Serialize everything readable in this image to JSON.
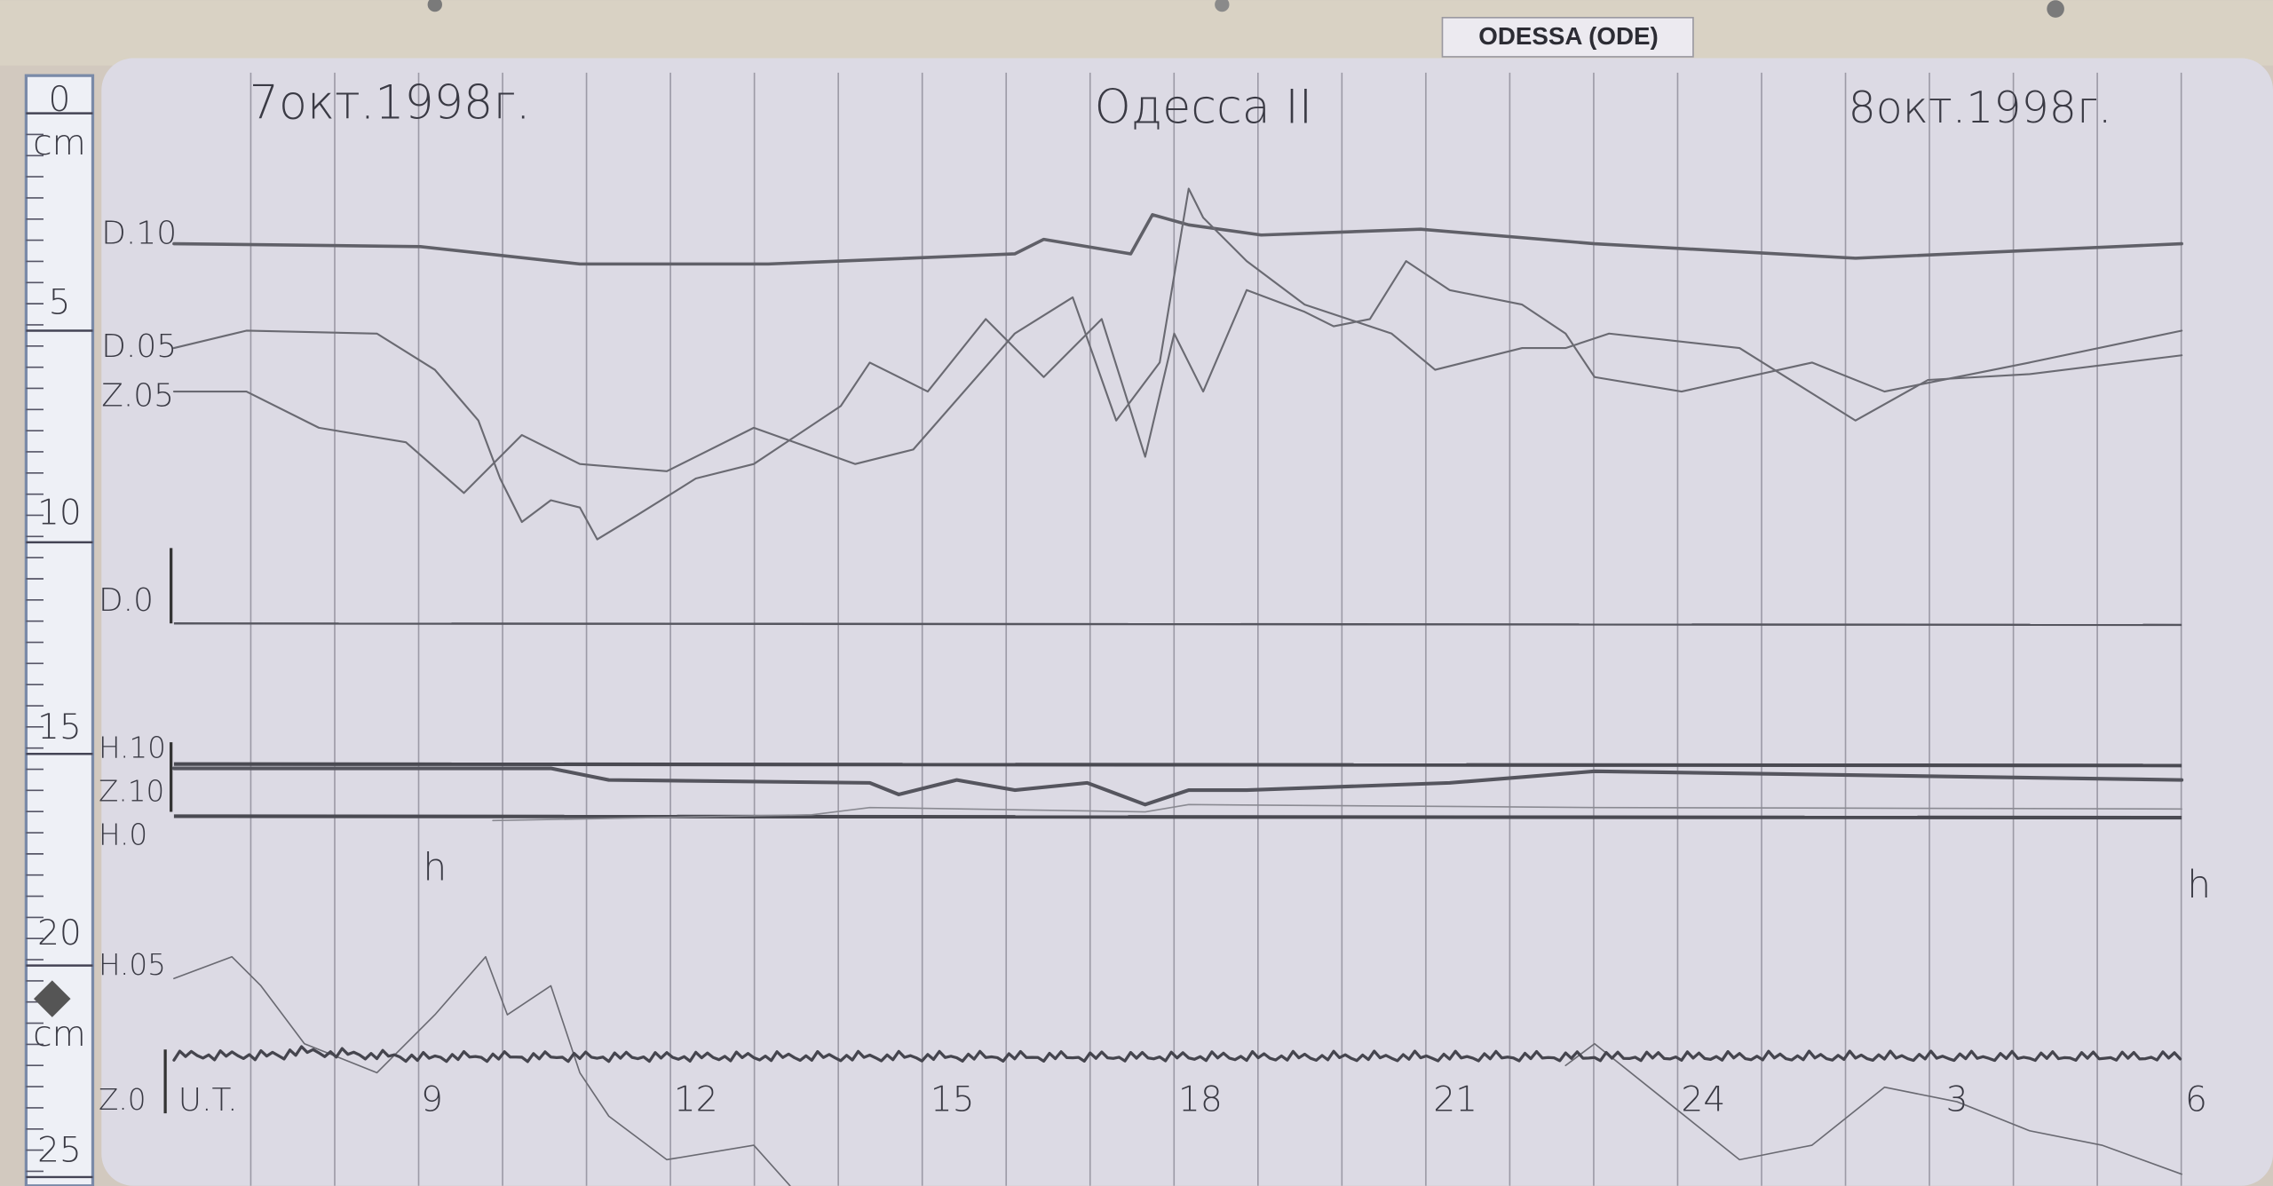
{
  "label_plate": "ODESSA (ODE)",
  "header": {
    "date_start": "7окт.1998г.",
    "station": "Одесса II",
    "date_end": "8окт.1998г."
  },
  "traces": [
    {
      "label": "D.10"
    },
    {
      "label": "D.05"
    },
    {
      "label": "Z.05"
    },
    {
      "label": "D.0"
    },
    {
      "label": "H.10"
    },
    {
      "label": "Z.10"
    },
    {
      "label": "H.0"
    },
    {
      "label": "H.05"
    },
    {
      "label": "Z.0"
    }
  ],
  "time_axis": {
    "unit_label": "U.T.",
    "hour_marks": [
      "h",
      "h"
    ],
    "ticks": [
      "9",
      "12",
      "15",
      "18",
      "21",
      "24",
      "3",
      "6"
    ]
  },
  "ruler": {
    "labels": [
      "0",
      "cm",
      "5",
      "10",
      "15",
      "20",
      "cm",
      "25"
    ]
  }
}
